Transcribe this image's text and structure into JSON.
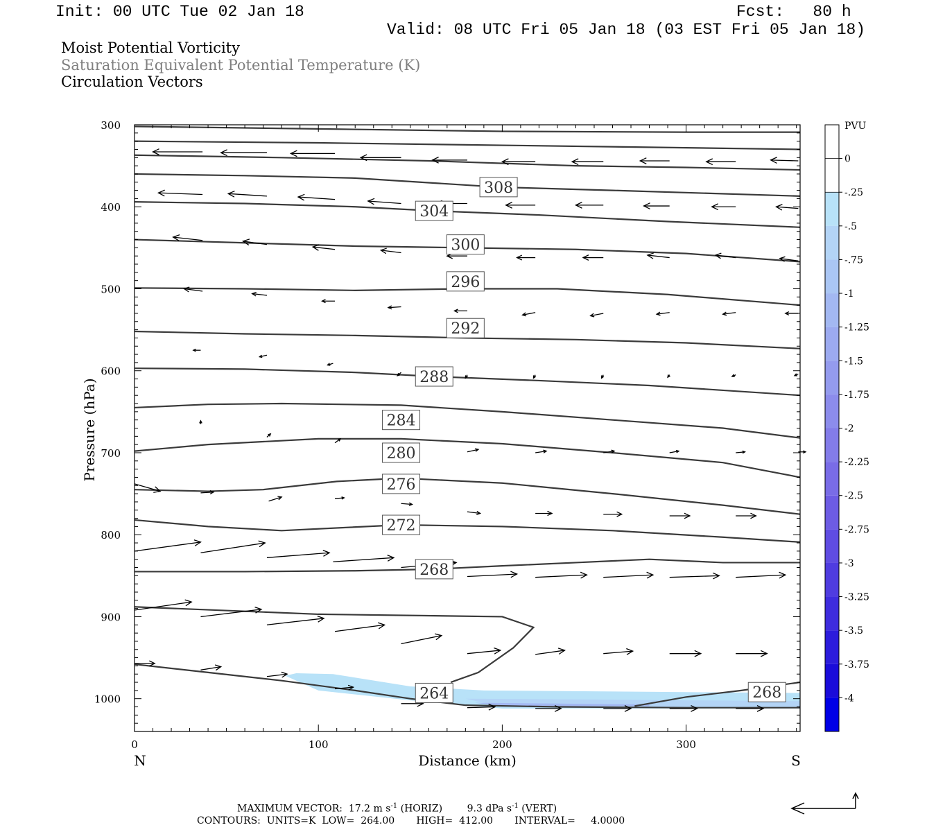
{
  "header": {
    "init": "Init: 00 UTC Tue 02 Jan 18",
    "fcst": "Fcst:   80 h",
    "valid": "Valid: 08 UTC Fri 05 Jan 18 (03 EST Fri 05 Jan 18)",
    "field1": "Moist Potential Vorticity",
    "field2": "Saturation Equivalent Potential Temperature (K)",
    "field3": "Circulation Vectors"
  },
  "chart_data": {
    "type": "cross-section",
    "xlabel": "Distance (km)",
    "ylabel": "Pressure (hPa)",
    "xlim": [
      0,
      362
    ],
    "ylim": [
      300,
      1040
    ],
    "y_log": false,
    "x_ticks": [
      0,
      100,
      200,
      300
    ],
    "y_ticks": [
      300,
      400,
      500,
      600,
      700,
      800,
      900,
      1000
    ],
    "x_end_labels": {
      "left": "N",
      "right": "S"
    },
    "grid": false,
    "colorbar": {
      "label": "PVU",
      "levels": [
        "0",
        "-.25",
        "-.5",
        "-.75",
        "-1",
        "-1.25",
        "-1.5",
        "-1.75",
        "-2",
        "-2.25",
        "-2.5",
        "-2.75",
        "-3",
        "-3.25",
        "-3.5",
        "-3.75",
        "-4"
      ],
      "colors": [
        "#ffffff",
        "#ffffff",
        "#b8e2f8",
        "#b3d4f6",
        "#aac6f4",
        "#a3b8f2",
        "#9caaf0",
        "#949bee",
        "#8c8cec",
        "#837ce9",
        "#796ce7",
        "#6d5ce4",
        "#5f4ce2",
        "#4f3ce0",
        "#3e2cde",
        "#2c1cdc",
        "#1a0cda",
        "#0000e6"
      ]
    },
    "contours": [
      {
        "label": "264",
        "label_at": [
          163,
          993
        ],
        "points": [
          [
            0,
            958
          ],
          [
            40,
            968
          ],
          [
            80,
            978
          ],
          [
            120,
            990
          ],
          [
            150,
            1000
          ],
          [
            180,
            1008
          ],
          [
            230,
            1010
          ],
          [
            300,
            1011
          ],
          [
            362,
            1011
          ]
        ]
      },
      {
        "label": "268",
        "label_at": [
          163,
          842
        ],
        "points": [
          [
            0,
            845
          ],
          [
            60,
            845
          ],
          [
            120,
            844
          ],
          [
            163,
            842
          ],
          [
            200,
            838
          ],
          [
            240,
            834
          ],
          [
            280,
            830
          ],
          [
            320,
            834
          ],
          [
            362,
            834
          ]
        ]
      },
      {
        "label": "",
        "label_at": null,
        "points": [
          [
            0,
            888
          ],
          [
            100,
            897
          ],
          [
            200,
            900
          ],
          [
            217,
            913
          ],
          [
            206,
            938
          ],
          [
            187,
            968
          ],
          [
            172,
            980
          ]
        ]
      },
      {
        "label": "268",
        "label_at": [
          344,
          992
        ],
        "points": [
          [
            272,
            1009
          ],
          [
            300,
            998
          ],
          [
            330,
            990
          ],
          [
            362,
            980
          ]
        ]
      },
      {
        "label": "272",
        "label_at": [
          145,
          788
        ],
        "points": [
          [
            0,
            782
          ],
          [
            40,
            790
          ],
          [
            80,
            795
          ],
          [
            145,
            788
          ],
          [
            200,
            790
          ],
          [
            260,
            795
          ],
          [
            320,
            803
          ],
          [
            362,
            809
          ]
        ]
      },
      {
        "label": "276",
        "label_at": [
          145,
          738
        ],
        "points": [
          [
            0,
            745
          ],
          [
            40,
            747
          ],
          [
            70,
            745
          ],
          [
            110,
            735
          ],
          [
            145,
            731
          ],
          [
            200,
            737
          ],
          [
            260,
            750
          ],
          [
            320,
            764
          ],
          [
            362,
            775
          ]
        ]
      },
      {
        "label": "280",
        "label_at": [
          145,
          700
        ],
        "points": [
          [
            0,
            698
          ],
          [
            40,
            690
          ],
          [
            100,
            683
          ],
          [
            145,
            683
          ],
          [
            200,
            689
          ],
          [
            260,
            700
          ],
          [
            320,
            712
          ],
          [
            362,
            730
          ]
        ]
      },
      {
        "label": "284",
        "label_at": [
          145,
          660
        ],
        "points": [
          [
            0,
            645
          ],
          [
            40,
            641
          ],
          [
            80,
            640
          ],
          [
            145,
            642
          ],
          [
            200,
            650
          ],
          [
            260,
            660
          ],
          [
            320,
            670
          ],
          [
            362,
            682
          ]
        ]
      },
      {
        "label": "288",
        "label_at": [
          163,
          607
        ],
        "points": [
          [
            0,
            597
          ],
          [
            60,
            598
          ],
          [
            120,
            602
          ],
          [
            163,
            607
          ],
          [
            220,
            612
          ],
          [
            280,
            618
          ],
          [
            362,
            630
          ]
        ]
      },
      {
        "label": "292",
        "label_at": [
          180,
          548
        ],
        "points": [
          [
            0,
            552
          ],
          [
            60,
            555
          ],
          [
            120,
            557
          ],
          [
            180,
            560
          ],
          [
            240,
            562
          ],
          [
            300,
            566
          ],
          [
            362,
            573
          ]
        ]
      },
      {
        "label": "296",
        "label_at": [
          180,
          491
        ],
        "points": [
          [
            0,
            499
          ],
          [
            60,
            500
          ],
          [
            120,
            502
          ],
          [
            180,
            500
          ],
          [
            230,
            500
          ],
          [
            290,
            507
          ],
          [
            362,
            520
          ]
        ]
      },
      {
        "label": "300",
        "label_at": [
          180,
          446
        ],
        "points": [
          [
            0,
            440
          ],
          [
            60,
            444
          ],
          [
            120,
            448
          ],
          [
            180,
            450
          ],
          [
            240,
            452
          ],
          [
            300,
            457
          ],
          [
            362,
            467
          ]
        ]
      },
      {
        "label": "304",
        "label_at": [
          163,
          405
        ],
        "points": [
          [
            0,
            394
          ],
          [
            60,
            396
          ],
          [
            120,
            400
          ],
          [
            163,
            405
          ],
          [
            220,
            410
          ],
          [
            290,
            418
          ],
          [
            362,
            425
          ]
        ]
      },
      {
        "label": "308",
        "label_at": [
          198,
          376
        ],
        "points": [
          [
            0,
            360
          ],
          [
            60,
            362
          ],
          [
            120,
            365
          ],
          [
            198,
            376
          ],
          [
            260,
            380
          ],
          [
            362,
            387
          ]
        ]
      },
      {
        "label": "",
        "label_at": null,
        "points": [
          [
            0,
            337
          ],
          [
            80,
            340
          ],
          [
            160,
            344
          ],
          [
            240,
            350
          ],
          [
            300,
            352
          ],
          [
            362,
            355
          ]
        ]
      },
      {
        "label": "",
        "label_at": null,
        "points": [
          [
            0,
            320
          ],
          [
            100,
            322
          ],
          [
            200,
            325
          ],
          [
            300,
            328
          ],
          [
            362,
            330
          ]
        ]
      },
      {
        "label": "",
        "label_at": null,
        "points": [
          [
            0,
            302
          ],
          [
            100,
            305
          ],
          [
            200,
            308
          ],
          [
            300,
            309
          ],
          [
            362,
            309
          ]
        ]
      }
    ],
    "pv_shading": [
      {
        "level": "-.5",
        "color": "#b8e2f8",
        "points": [
          [
            82,
            972
          ],
          [
            88,
            969
          ],
          [
            108,
            970
          ],
          [
            150,
            985
          ],
          [
            190,
            990
          ],
          [
            300,
            992
          ],
          [
            362,
            993
          ],
          [
            362,
            1012
          ],
          [
            300,
            1012
          ],
          [
            200,
            1012
          ],
          [
            150,
            1002
          ],
          [
            100,
            990
          ]
        ]
      },
      {
        "level": "-.75",
        "color": "#b3d4f6",
        "points": [
          [
            180,
            1000
          ],
          [
            250,
            1001
          ],
          [
            300,
            1002
          ],
          [
            362,
            1003
          ],
          [
            362,
            1010
          ],
          [
            300,
            1010
          ],
          [
            200,
            1010
          ]
        ]
      },
      {
        "level": "-1",
        "color": "#a3b8f2",
        "points": [
          [
            185,
            1005
          ],
          [
            230,
            1006
          ],
          [
            280,
            1007
          ],
          [
            280,
            1009
          ],
          [
            200,
            1009
          ]
        ]
      }
    ],
    "vectors": [
      [
        37,
        333,
        -27,
        0
      ],
      [
        72,
        334,
        -25,
        0
      ],
      [
        109,
        335,
        -24,
        0
      ],
      [
        145,
        340,
        -22,
        0
      ],
      [
        181,
        343,
        -19,
        0
      ],
      [
        218,
        345,
        -18,
        0
      ],
      [
        255,
        345,
        -17,
        0
      ],
      [
        291,
        344,
        -16,
        0
      ],
      [
        327,
        345,
        -16,
        0
      ],
      [
        361,
        344,
        -15,
        -1
      ],
      [
        37,
        385,
        -24,
        -2
      ],
      [
        72,
        387,
        -21,
        -3
      ],
      [
        109,
        391,
        -20,
        -3
      ],
      [
        145,
        396,
        -18,
        -3
      ],
      [
        181,
        396,
        -17,
        0
      ],
      [
        218,
        398,
        -16,
        0
      ],
      [
        255,
        398,
        -15,
        0
      ],
      [
        291,
        399,
        -14,
        0
      ],
      [
        327,
        400,
        -13,
        0
      ],
      [
        361,
        402,
        -12,
        -2
      ],
      [
        37,
        441,
        -16,
        -4
      ],
      [
        72,
        446,
        -13,
        -4
      ],
      [
        109,
        452,
        -12,
        -3
      ],
      [
        145,
        456,
        -11,
        -3
      ],
      [
        181,
        460,
        -11,
        0
      ],
      [
        218,
        462,
        -10,
        0
      ],
      [
        255,
        462,
        -11,
        0
      ],
      [
        291,
        462,
        -12,
        -3
      ],
      [
        327,
        462,
        -11,
        -3
      ],
      [
        361,
        466,
        -10,
        -3
      ],
      [
        37,
        503,
        -10,
        -3
      ],
      [
        72,
        508,
        -8,
        -2
      ],
      [
        109,
        515,
        -7,
        0
      ],
      [
        145,
        522,
        -7,
        1
      ],
      [
        181,
        527,
        -7,
        0
      ],
      [
        218,
        529,
        -7,
        3
      ],
      [
        255,
        530,
        -7,
        3
      ],
      [
        291,
        529,
        -7,
        2
      ],
      [
        327,
        529,
        -7,
        2
      ],
      [
        361,
        530,
        -7,
        0
      ],
      [
        36,
        575,
        -4,
        0
      ],
      [
        72,
        581,
        -4,
        2
      ],
      [
        108,
        591,
        -3,
        2
      ],
      [
        145,
        602,
        -2,
        4
      ],
      [
        181,
        605,
        -1,
        4
      ],
      [
        218,
        605,
        -1,
        4
      ],
      [
        255,
        605,
        -1,
        4
      ],
      [
        291,
        605,
        -1,
        3
      ],
      [
        327,
        605,
        -2,
        2
      ],
      [
        361,
        604,
        -2,
        2
      ],
      [
        36,
        665,
        0,
        -4
      ],
      [
        72,
        681,
        2,
        -4
      ],
      [
        109,
        688,
        3,
        -5
      ],
      [
        145,
        696,
        5,
        -3
      ],
      [
        181,
        699,
        6,
        -3
      ],
      [
        218,
        700,
        6,
        -2
      ],
      [
        255,
        700,
        6,
        -2
      ],
      [
        291,
        700,
        5,
        -2
      ],
      [
        327,
        700,
        5,
        -1
      ],
      [
        361,
        699,
        4,
        0
      ],
      [
        0,
        738,
        14,
        9
      ],
      [
        36,
        749,
        7,
        -1
      ],
      [
        73,
        759,
        7,
        -5
      ],
      [
        109,
        756,
        5,
        -1
      ],
      [
        145,
        762,
        6,
        1
      ],
      [
        181,
        772,
        7,
        2
      ],
      [
        218,
        774,
        9,
        0
      ],
      [
        255,
        775,
        10,
        0
      ],
      [
        291,
        777,
        11,
        0
      ],
      [
        327,
        777,
        11,
        0
      ],
      [
        0,
        820,
        36,
        -11
      ],
      [
        36,
        822,
        35,
        -12
      ],
      [
        72,
        828,
        34,
        -6
      ],
      [
        108,
        833,
        33,
        -5
      ],
      [
        145,
        840,
        30,
        -6
      ],
      [
        181,
        851,
        27,
        -3
      ],
      [
        218,
        852,
        28,
        -3
      ],
      [
        255,
        852,
        27,
        -3
      ],
      [
        291,
        852,
        27,
        -2
      ],
      [
        327,
        852,
        27,
        -3
      ],
      [
        0,
        892,
        31,
        -10
      ],
      [
        36,
        900,
        33,
        -9
      ],
      [
        72,
        910,
        31,
        -8
      ],
      [
        109,
        918,
        27,
        -8
      ],
      [
        145,
        933,
        22,
        -10
      ],
      [
        181,
        945,
        18,
        -4
      ],
      [
        218,
        946,
        16,
        -5
      ],
      [
        255,
        945,
        16,
        -3
      ],
      [
        291,
        945,
        17,
        0
      ],
      [
        327,
        945,
        17,
        0
      ],
      [
        0,
        957,
        11,
        0
      ],
      [
        36,
        965,
        11,
        -4
      ],
      [
        72,
        973,
        11,
        -3
      ],
      [
        109,
        988,
        10,
        -2
      ],
      [
        145,
        1006,
        12,
        0
      ],
      [
        181,
        1011,
        15,
        -1
      ],
      [
        218,
        1012,
        14,
        0
      ],
      [
        255,
        1012,
        15,
        0
      ],
      [
        291,
        1012,
        15,
        0
      ],
      [
        327,
        1012,
        15,
        0
      ]
    ]
  },
  "footer": {
    "max_prefix": "MAXIMUM VECTOR:  17.2 m s",
    "max_exp1": "-1",
    "max_mid": " (HORIZ)        9.3 dPa s",
    "max_exp2": "-1",
    "max_suffix": " (VERT)",
    "contours": "CONTOURS:  UNITS=K  LOW=  264.00       HIGH=  412.00       INTERVAL=     4.0000"
  }
}
